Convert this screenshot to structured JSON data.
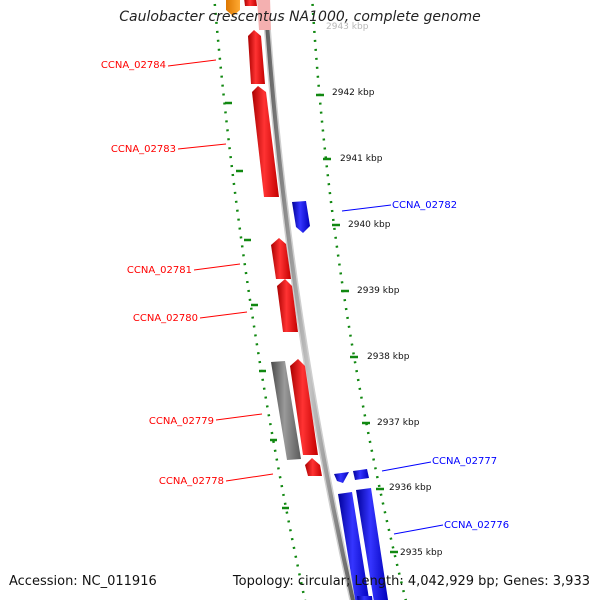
{
  "title": "Caulobacter crescentus NA1000, complete genome",
  "footer": {
    "accession": "Accession: NC_011916",
    "summary": "Topology: circular; Length: 4,042,929 bp; Genes: 3,933"
  },
  "colors": {
    "forward_strand": "#ff0000",
    "reverse_strand": "#0000ff",
    "other_feature": "#7a7a7a",
    "highlight": "#ff9900",
    "tick": "#118811",
    "backbone": "#8c8c8c",
    "label_text": "#111111"
  },
  "ticks": [
    {
      "label": "2943 kbp"
    },
    {
      "label": "2942 kbp"
    },
    {
      "label": "2941 kbp"
    },
    {
      "label": "2940 kbp"
    },
    {
      "label": "2939 kbp"
    },
    {
      "label": "2938 kbp"
    },
    {
      "label": "2937 kbp"
    },
    {
      "label": "2936 kbp"
    },
    {
      "label": "2935 kbp"
    }
  ],
  "genes": [
    {
      "id": "CCNA_02784",
      "strand": "forward",
      "color": "#ff0000"
    },
    {
      "id": "CCNA_02783",
      "strand": "forward",
      "color": "#ff0000"
    },
    {
      "id": "CCNA_02782",
      "strand": "reverse",
      "color": "#0000ff"
    },
    {
      "id": "CCNA_02781",
      "strand": "forward",
      "color": "#ff0000"
    },
    {
      "id": "CCNA_02780",
      "strand": "forward",
      "color": "#ff0000"
    },
    {
      "id": "CCNA_02779",
      "strand": "forward",
      "color": "#ff0000"
    },
    {
      "id": "CCNA_02778",
      "strand": "forward",
      "color": "#ff0000"
    },
    {
      "id": "CCNA_02777",
      "strand": "reverse",
      "color": "#0000ff"
    },
    {
      "id": "CCNA_02776",
      "strand": "reverse",
      "color": "#0000ff"
    }
  ]
}
